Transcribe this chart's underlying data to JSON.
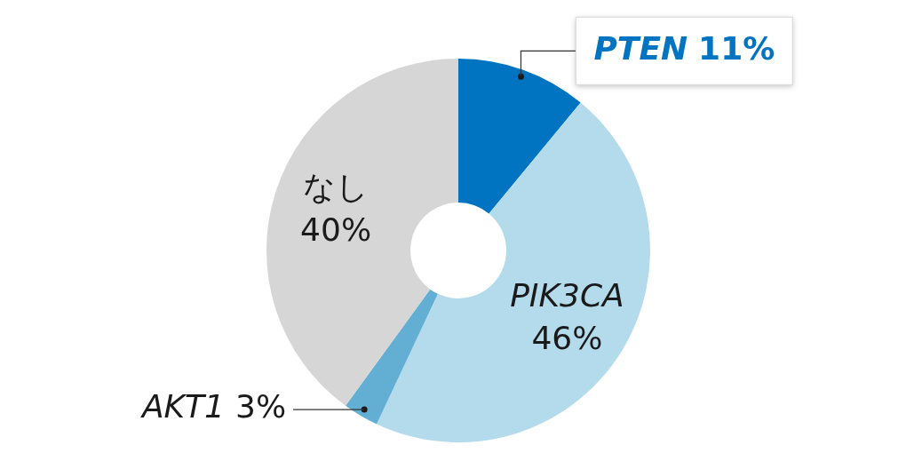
{
  "chart_data": {
    "type": "donut",
    "categories": [
      "PTEN",
      "PIK3CA",
      "AKT1",
      "なし"
    ],
    "values": [
      11,
      46,
      3,
      40
    ],
    "colors": [
      "#0074c1",
      "#b3dbec",
      "#63aed3",
      "#d6d6d6"
    ],
    "value_labels": [
      "11%",
      "46%",
      "3%",
      "40%"
    ],
    "legend": false
  }
}
